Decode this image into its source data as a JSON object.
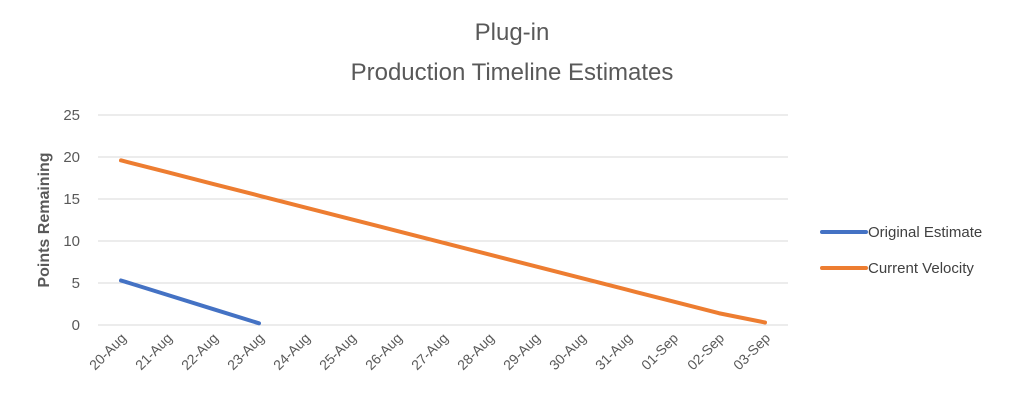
{
  "chart_data": {
    "type": "line",
    "title_lines": [
      "Plug-in",
      "Production Timeline Estimates"
    ],
    "xlabel": "",
    "ylabel": "Points Remaining",
    "categories": [
      "20-Aug",
      "21-Aug",
      "22-Aug",
      "23-Aug",
      "24-Aug",
      "25-Aug",
      "26-Aug",
      "27-Aug",
      "28-Aug",
      "29-Aug",
      "30-Aug",
      "31-Aug",
      "01-Sep",
      "02-Sep",
      "03-Sep"
    ],
    "ylim": [
      0,
      25
    ],
    "yticks": [
      0,
      5,
      10,
      15,
      20,
      25
    ],
    "grid": true,
    "legend_position": "right",
    "series": [
      {
        "name": "Original Estimate",
        "color": "#4472C4",
        "values": [
          5.3,
          3.6,
          1.9,
          0.2,
          null,
          null,
          null,
          null,
          null,
          null,
          null,
          null,
          null,
          null,
          null
        ]
      },
      {
        "name": "Current Velocity",
        "color": "#ED7D31",
        "values": [
          19.6,
          18.2,
          16.8,
          15.4,
          14.0,
          12.6,
          11.2,
          9.8,
          8.4,
          7.0,
          5.6,
          4.2,
          2.8,
          1.4,
          0.3
        ]
      }
    ]
  }
}
